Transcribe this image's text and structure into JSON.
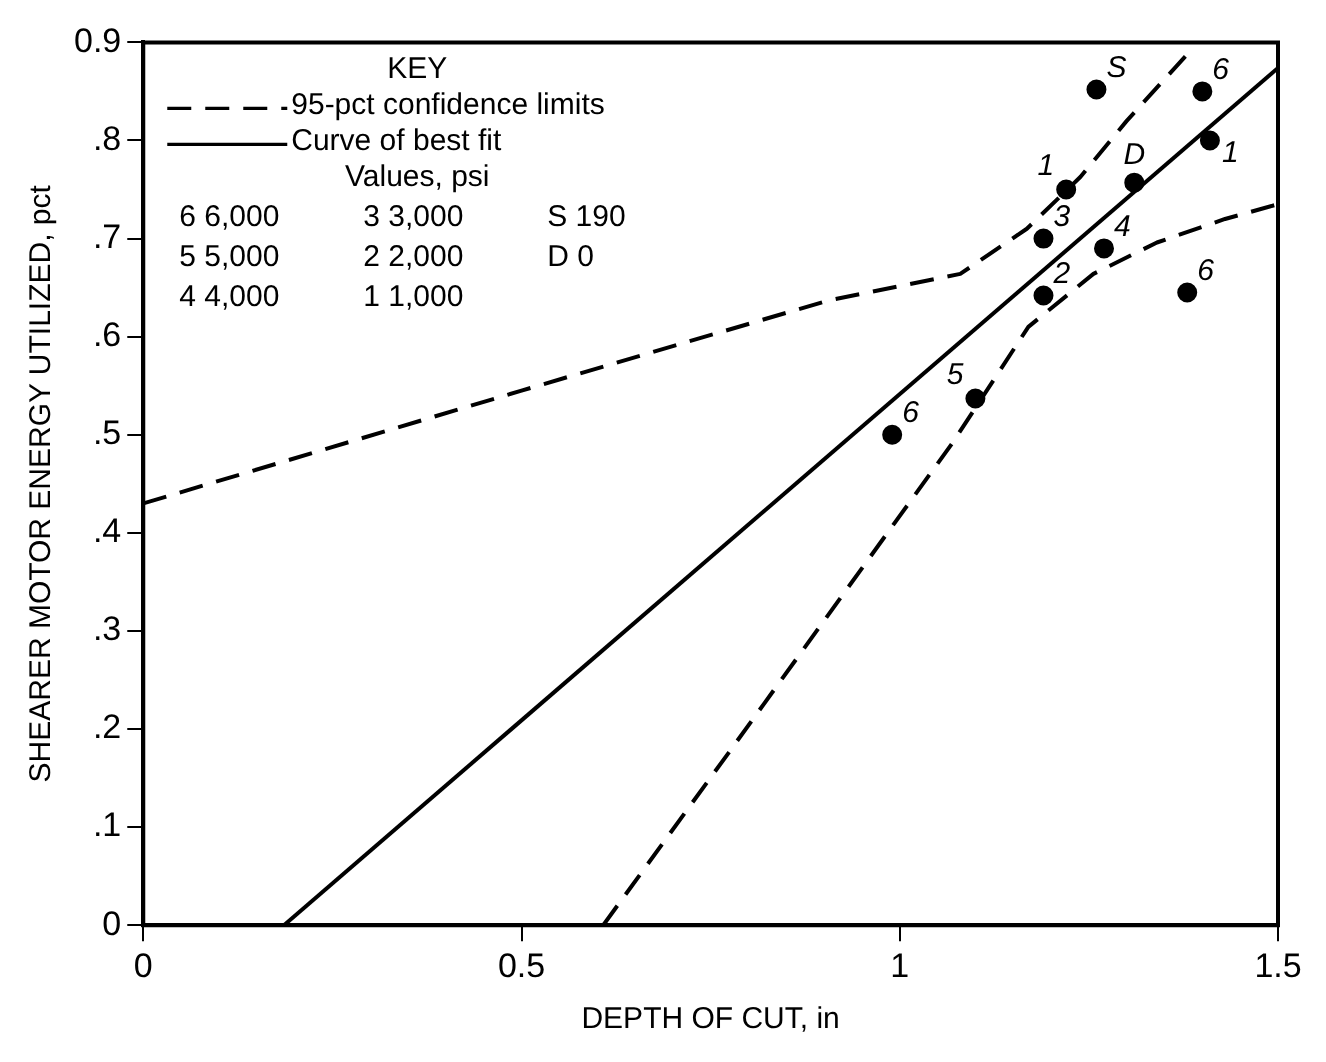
{
  "chart_data": {
    "type": "scatter",
    "xlabel": "DEPTH OF CUT, in",
    "ylabel": "SHEARER MOTOR ENERGY UTILIZED, pct",
    "xlim": [
      0,
      1.5
    ],
    "xticks": [
      0,
      0.5,
      1,
      1.5
    ],
    "ylim": [
      0,
      0.9
    ],
    "yticks": [
      {
        "value": 0,
        "label": "0"
      },
      {
        "value": 0.1,
        "label": ".1"
      },
      {
        "value": 0.2,
        "label": ".2"
      },
      {
        "value": 0.3,
        "label": ".3"
      },
      {
        "value": 0.4,
        "label": ".4"
      },
      {
        "value": 0.5,
        "label": ".5"
      },
      {
        "value": 0.6,
        "label": ".6"
      },
      {
        "value": 0.7,
        "label": ".7"
      },
      {
        "value": 0.8,
        "label": ".8"
      },
      {
        "value": 0.9,
        "label": "0.9"
      }
    ],
    "grid": false,
    "legend": "top left",
    "legend_title": "KEY",
    "series": [
      {
        "name": "95-pct confidence limits",
        "type": "line",
        "line_style": "dashed",
        "marker": "none",
        "color": "#000000",
        "x": [
          0,
          0.5,
          0.906,
          1.08,
          1.168,
          1.239,
          1.3,
          1.386
        ],
        "values": [
          0.43,
          0.545,
          0.637,
          0.664,
          0.71,
          0.763,
          0.82,
          0.893
        ]
      },
      {
        "type": "line",
        "line_style": "dashed",
        "marker": "none",
        "color": "#000000",
        "x": [
          0.608,
          0.774,
          1.07,
          1.17,
          1.256,
          1.34,
          1.43,
          1.5
        ],
        "values": [
          0,
          0.176,
          0.492,
          0.61,
          0.664,
          0.696,
          0.72,
          0.735
        ]
      },
      {
        "name": "Curve of best fit",
        "type": "line",
        "line_style": "solid",
        "marker": "none",
        "color": "#000000",
        "x": [
          0.186,
          1.5
        ],
        "values": [
          0,
          0.874
        ]
      },
      {
        "type": "scatter",
        "marker": "circle",
        "color": "#000000",
        "x": [
          0.99,
          1.1,
          1.19,
          1.19,
          1.22,
          1.26,
          1.27,
          1.31,
          1.38,
          1.4,
          1.41
        ],
        "values": [
          0.5,
          0.537,
          0.642,
          0.7,
          0.75,
          0.852,
          0.69,
          0.757,
          0.645,
          0.85,
          0.8
        ]
      }
    ],
    "annotations": [
      "Values, psi",
      "6 6,000",
      "3 3,000",
      "S 190",
      "5 5,000",
      "2 2,000",
      "D 0",
      "4 4,000",
      "1 1,000",
      {
        "text": "6",
        "x": 0.99,
        "y": 0.5
      },
      {
        "text": "5",
        "x": 1.1,
        "y": 0.537
      },
      {
        "text": "2",
        "x": 1.19,
        "y": 0.642
      },
      {
        "text": "3",
        "x": 1.19,
        "y": 0.7
      },
      {
        "text": "1",
        "x": 1.22,
        "y": 0.75
      },
      {
        "text": "S",
        "x": 1.26,
        "y": 0.852
      },
      {
        "text": "4",
        "x": 1.27,
        "y": 0.69
      },
      {
        "text": "D",
        "x": 1.31,
        "y": 0.757
      },
      {
        "text": "6",
        "x": 1.38,
        "y": 0.645
      },
      {
        "text": "6",
        "x": 1.4,
        "y": 0.85
      },
      {
        "text": "1",
        "x": 1.41,
        "y": 0.8
      }
    ]
  }
}
